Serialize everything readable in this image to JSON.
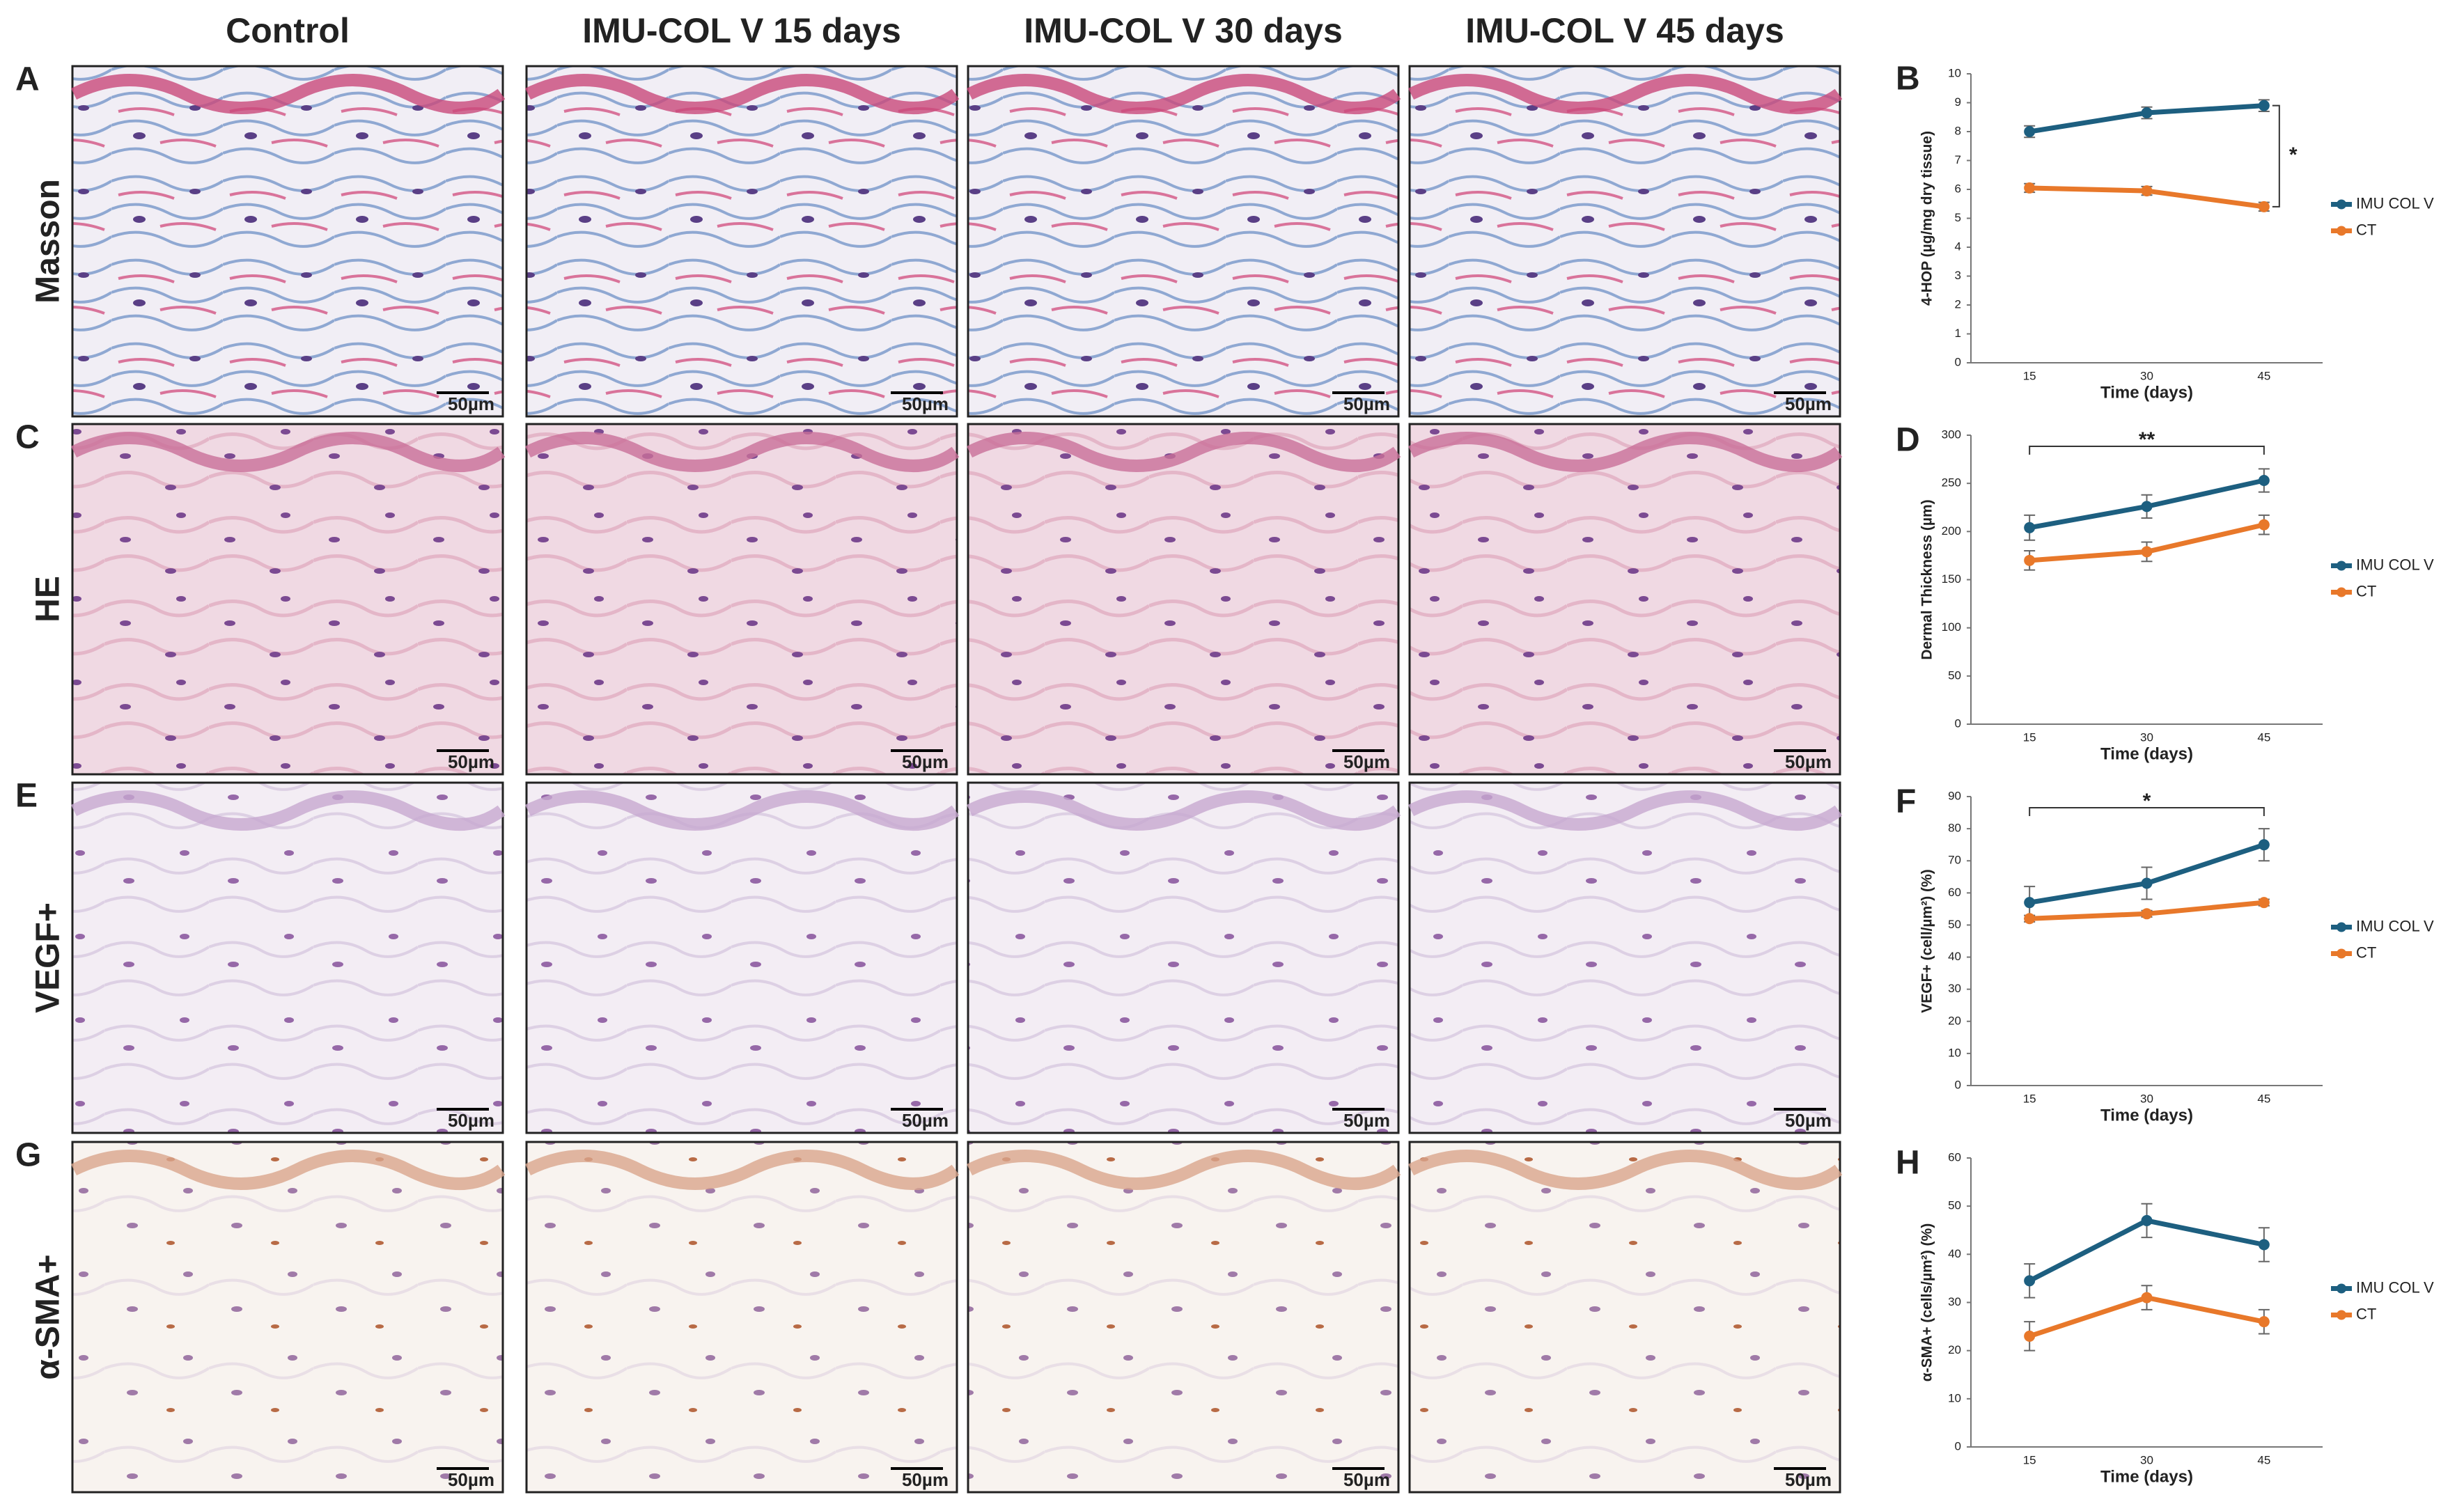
{
  "columns": [
    "Control",
    "IMU-COL V 15 days",
    "IMU-COL V 30 days",
    "IMU-COL V 45 days"
  ],
  "rows": [
    {
      "label": "A",
      "stain": "Masson",
      "scale_bars": [
        "50µm",
        "50µm",
        "50µm",
        "50µm"
      ]
    },
    {
      "label": "C",
      "stain": "HE",
      "scale_bars": [
        "50µm",
        "50µm",
        "50µm",
        "50µm"
      ]
    },
    {
      "label": "E",
      "stain": "VEGF+",
      "scale_bars": [
        "50µm",
        "50µm",
        "50µm",
        "50µm"
      ]
    },
    {
      "label": "G",
      "stain": "α-SMA+",
      "scale_bars": [
        "50µm",
        "50µm",
        "50µm",
        "50µm"
      ]
    }
  ],
  "chart_data": [
    {
      "type": "line",
      "label": "B",
      "ylabel": "4-HOP (µg/mg dry tissue)",
      "xlabel": "Time (days)",
      "categories": [
        "15",
        "30",
        "45"
      ],
      "ylim": [
        0,
        10
      ],
      "yticks": [
        0,
        1,
        2,
        3,
        4,
        5,
        6,
        7,
        8,
        9,
        10
      ],
      "series": [
        {
          "name": "IMU COL V",
          "color": "#1d5f80",
          "values": [
            8.0,
            8.65,
            8.9
          ],
          "errors": [
            0.2,
            0.2,
            0.2
          ]
        },
        {
          "name": "CT",
          "color": "#e8782a",
          "values": [
            6.05,
            5.95,
            5.4
          ],
          "errors": [
            0.15,
            0.15,
            0.15
          ]
        }
      ],
      "legend": "right",
      "annotation": "*",
      "bracket": "vertical"
    },
    {
      "type": "line",
      "label": "D",
      "ylabel": "Dermal Thickness (µm)",
      "xlabel": "Time (days)",
      "categories": [
        "15",
        "30",
        "45"
      ],
      "ylim": [
        0,
        300
      ],
      "yticks": [
        0,
        50,
        100,
        150,
        200,
        250,
        300
      ],
      "series": [
        {
          "name": "IMU COL V",
          "color": "#1d5f80",
          "values": [
            204,
            226,
            253
          ],
          "errors": [
            13,
            12,
            12
          ]
        },
        {
          "name": "CT",
          "color": "#e8782a",
          "values": [
            170,
            179,
            207
          ],
          "errors": [
            10,
            10,
            10
          ]
        }
      ],
      "legend": "right",
      "annotation": "**",
      "bracket": "horizontal"
    },
    {
      "type": "line",
      "label": "F",
      "ylabel": "VEGF+ (cell/µm²) (%)",
      "xlabel": "Time (days)",
      "categories": [
        "15",
        "30",
        "45"
      ],
      "ylim": [
        0,
        90
      ],
      "yticks": [
        0,
        10,
        20,
        30,
        40,
        50,
        60,
        70,
        80,
        90
      ],
      "series": [
        {
          "name": "IMU COL V",
          "color": "#1d5f80",
          "values": [
            57,
            63,
            75
          ],
          "errors": [
            5,
            5,
            5
          ]
        },
        {
          "name": "CT",
          "color": "#e8782a",
          "values": [
            52,
            53.5,
            57
          ],
          "errors": [
            1,
            1,
            1
          ]
        }
      ],
      "legend": "right",
      "annotation": "*",
      "bracket": "horizontal"
    },
    {
      "type": "line",
      "label": "H",
      "ylabel": "α-SMA+ (cells/µm²) (%)",
      "xlabel": "Time (days)",
      "categories": [
        "15",
        "30",
        "45"
      ],
      "ylim": [
        0,
        60
      ],
      "yticks": [
        0,
        10,
        20,
        30,
        40,
        50,
        60
      ],
      "series": [
        {
          "name": "IMU COL V",
          "color": "#1d5f80",
          "values": [
            34.5,
            47,
            42
          ],
          "errors": [
            3.5,
            3.5,
            3.5
          ]
        },
        {
          "name": "CT",
          "color": "#e8782a",
          "values": [
            23,
            31,
            26
          ],
          "errors": [
            3,
            2.5,
            2.5
          ]
        }
      ],
      "legend": "right"
    }
  ]
}
